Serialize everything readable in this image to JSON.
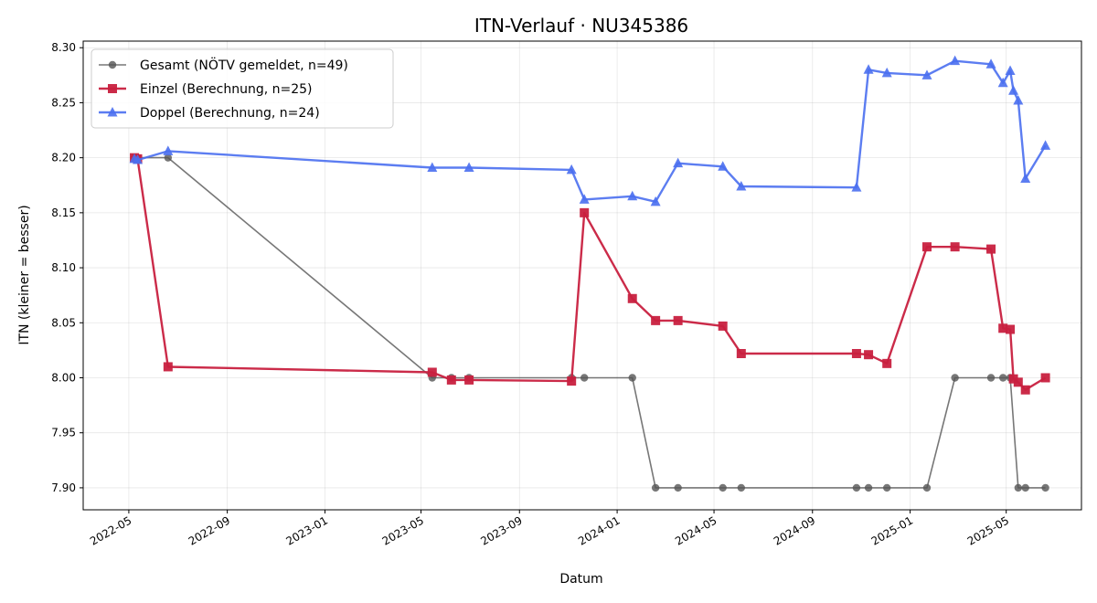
{
  "chart_data": {
    "type": "line",
    "title": "ITN-Verlauf · NU345386",
    "xlabel": "Datum",
    "ylabel": "ITN  (kleiner = besser)",
    "x_ticks": [
      "2022-05",
      "2022-09",
      "2023-01",
      "2023-05",
      "2023-09",
      "2024-01",
      "2024-05",
      "2024-09",
      "2025-01",
      "2025-05"
    ],
    "y_ticks": [
      "7.90",
      "7.95",
      "8.00",
      "8.05",
      "8.10",
      "8.15",
      "8.20",
      "8.25",
      "8.30"
    ],
    "xlim": [
      "2022-03-05",
      "2025-08-03"
    ],
    "ylim": [
      7.88,
      8.306
    ],
    "grid": true,
    "legend_position": "top-left",
    "series": [
      {
        "name": "Gesamt (NÖTV gemeldet, n=49)",
        "color": "#555555",
        "marker": "circle",
        "points": [
          [
            "2022-05-08",
            8.2
          ],
          [
            "2022-05-12",
            8.2
          ],
          [
            "2022-06-19",
            8.2
          ],
          [
            "2023-05-15",
            8.0
          ],
          [
            "2023-06-08",
            8.0
          ],
          [
            "2023-06-30",
            8.0
          ],
          [
            "2023-11-05",
            8.0
          ],
          [
            "2023-11-21",
            8.0
          ],
          [
            "2024-01-20",
            8.0
          ],
          [
            "2024-02-18",
            7.9
          ],
          [
            "2024-03-17",
            7.9
          ],
          [
            "2024-05-12",
            7.9
          ],
          [
            "2024-06-04",
            7.9
          ],
          [
            "2024-10-26",
            7.9
          ],
          [
            "2024-11-10",
            7.9
          ],
          [
            "2024-12-03",
            7.9
          ],
          [
            "2025-01-22",
            7.9
          ],
          [
            "2025-02-26",
            8.0
          ],
          [
            "2025-04-12",
            8.0
          ],
          [
            "2025-04-27",
            8.0
          ],
          [
            "2025-05-06",
            8.0
          ],
          [
            "2025-05-16",
            7.9
          ],
          [
            "2025-05-25",
            7.9
          ],
          [
            "2025-06-19",
            7.9
          ]
        ]
      },
      {
        "name": "Einzel (Berechnung, n=25)",
        "color": "#c8203f",
        "marker": "square",
        "points": [
          [
            "2022-05-08",
            8.2
          ],
          [
            "2022-05-12",
            8.199
          ],
          [
            "2022-06-19",
            8.01
          ],
          [
            "2023-05-15",
            8.005
          ],
          [
            "2023-06-08",
            7.998
          ],
          [
            "2023-06-30",
            7.998
          ],
          [
            "2023-11-05",
            7.997
          ],
          [
            "2023-11-21",
            8.15
          ],
          [
            "2024-01-20",
            8.072
          ],
          [
            "2024-02-18",
            8.052
          ],
          [
            "2024-03-17",
            8.052
          ],
          [
            "2024-05-12",
            8.047
          ],
          [
            "2024-06-04",
            8.022
          ],
          [
            "2024-10-26",
            8.022
          ],
          [
            "2024-11-10",
            8.021
          ],
          [
            "2024-12-03",
            8.013
          ],
          [
            "2025-01-22",
            8.119
          ],
          [
            "2025-02-26",
            8.119
          ],
          [
            "2025-04-12",
            8.117
          ],
          [
            "2025-04-27",
            8.045
          ],
          [
            "2025-05-06",
            8.044
          ],
          [
            "2025-05-10",
            7.999
          ],
          [
            "2025-05-16",
            7.996
          ],
          [
            "2025-05-25",
            7.989
          ],
          [
            "2025-06-19",
            8.0
          ]
        ]
      },
      {
        "name": "Doppel (Berechnung, n=24)",
        "color": "#4a6ff0",
        "marker": "triangle",
        "points": [
          [
            "2022-05-08",
            8.199
          ],
          [
            "2022-05-12",
            8.198
          ],
          [
            "2022-06-19",
            8.206
          ],
          [
            "2023-05-15",
            8.191
          ],
          [
            "2023-06-30",
            8.191
          ],
          [
            "2023-11-05",
            8.189
          ],
          [
            "2023-11-21",
            8.162
          ],
          [
            "2024-01-20",
            8.165
          ],
          [
            "2024-02-18",
            8.16
          ],
          [
            "2024-03-17",
            8.195
          ],
          [
            "2024-05-12",
            8.192
          ],
          [
            "2024-06-04",
            8.174
          ],
          [
            "2024-10-26",
            8.173
          ],
          [
            "2024-11-10",
            8.28
          ],
          [
            "2024-12-03",
            8.277
          ],
          [
            "2025-01-22",
            8.275
          ],
          [
            "2025-02-26",
            8.288
          ],
          [
            "2025-04-12",
            8.285
          ],
          [
            "2025-04-27",
            8.268
          ],
          [
            "2025-05-06",
            8.279
          ],
          [
            "2025-05-10",
            8.261
          ],
          [
            "2025-05-16",
            8.252
          ],
          [
            "2025-05-25",
            8.181
          ],
          [
            "2025-06-19",
            8.211
          ]
        ]
      }
    ]
  }
}
